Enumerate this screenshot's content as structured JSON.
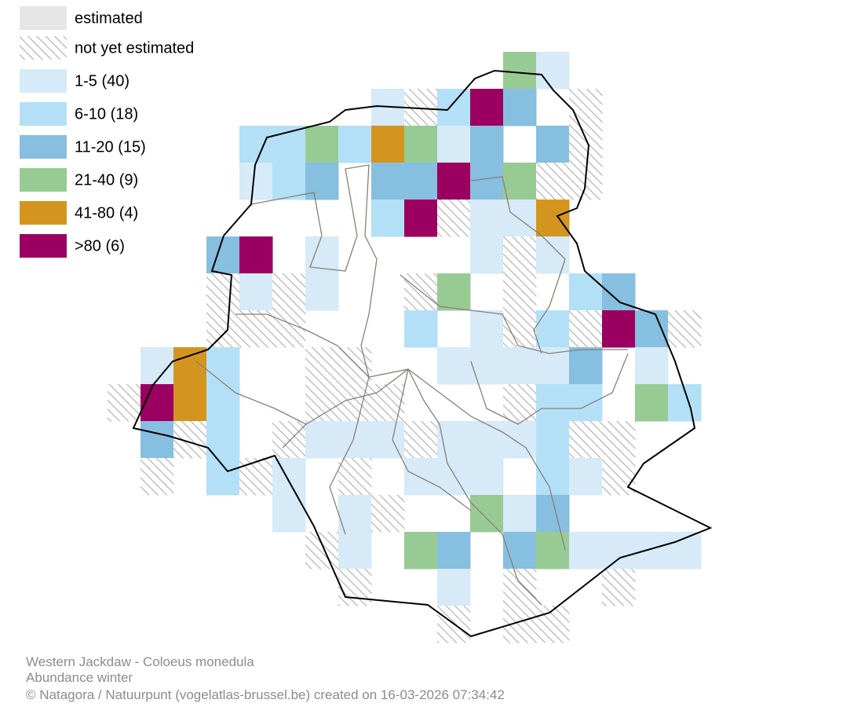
{
  "legend": {
    "items": [
      "estimated",
      "not yet estimated",
      "1-5 (40)",
      "6-10 (18)",
      "11-20 (15)",
      "21-40 (9)",
      "41-80 (4)",
      ">80 (6)"
    ]
  },
  "footer": {
    "species": "Western Jackdaw - Coloeus monedula",
    "subtitle": "Abundance winter",
    "credit": "© Natagora / Natuurpunt (vogelatlas-brussel.be) created on 16-03-2026 07:34:42"
  }
}
